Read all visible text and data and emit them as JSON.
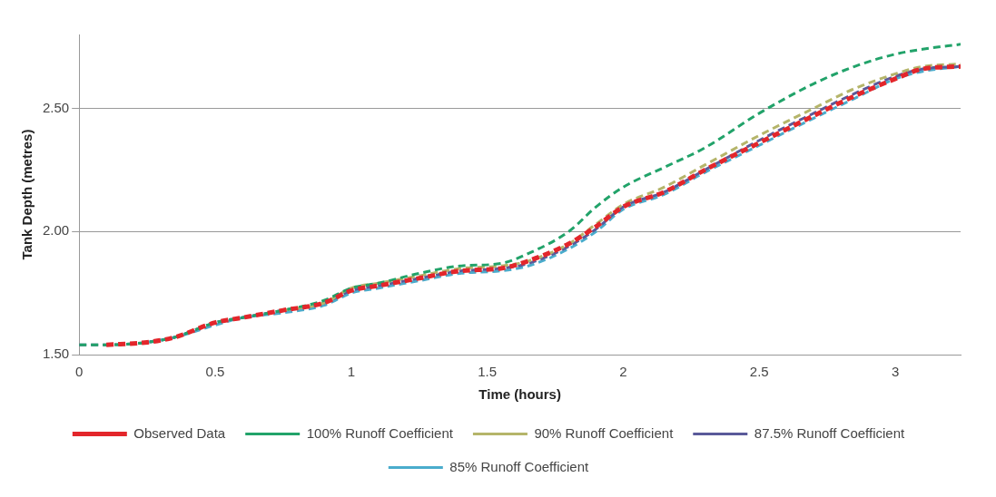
{
  "chart_data": {
    "type": "line",
    "xlabel": "Time (hours)",
    "ylabel": "Tank Depth (metres)",
    "x": [
      0,
      0.1,
      0.25,
      0.35,
      0.5,
      0.6,
      0.75,
      0.9,
      1.0,
      1.1,
      1.25,
      1.4,
      1.55,
      1.65,
      1.8,
      1.9,
      2.0,
      2.15,
      2.3,
      2.5,
      2.7,
      2.85,
      3.0,
      3.1,
      3.24
    ],
    "series": [
      {
        "name": "Observed Data",
        "color": "#e3262b",
        "line_style": "dashed",
        "values": [
          null,
          1.54,
          1.55,
          1.57,
          1.63,
          1.65,
          1.68,
          1.71,
          1.76,
          1.78,
          1.81,
          1.84,
          1.85,
          1.88,
          1.95,
          2.02,
          2.1,
          2.16,
          2.25,
          2.36,
          2.47,
          2.55,
          2.62,
          2.66,
          2.67
        ]
      },
      {
        "name": "100% Runoff Coefficient",
        "color": "#22a36a",
        "line_style": "dashed",
        "values": [
          1.54,
          1.54,
          1.55,
          1.57,
          1.63,
          1.65,
          1.68,
          1.72,
          1.77,
          1.79,
          1.83,
          1.86,
          1.87,
          1.91,
          2.0,
          2.1,
          2.18,
          2.26,
          2.34,
          2.48,
          2.6,
          2.67,
          2.72,
          2.74,
          2.76
        ]
      },
      {
        "name": "90% Runoff Coefficient",
        "color": "#b5b56a",
        "line_style": "dashed",
        "values": [
          null,
          null,
          null,
          null,
          null,
          null,
          1.68,
          1.71,
          1.77,
          1.79,
          1.82,
          1.85,
          1.86,
          1.88,
          1.95,
          2.03,
          2.11,
          2.18,
          2.27,
          2.39,
          2.5,
          2.58,
          2.64,
          2.67,
          2.68
        ]
      },
      {
        "name": "87.5% Runoff Coefficient",
        "color": "#5a5a9a",
        "line_style": "dashed",
        "values": [
          1.54,
          1.54,
          1.55,
          1.57,
          1.63,
          1.65,
          1.68,
          1.71,
          1.76,
          1.78,
          1.81,
          1.84,
          1.85,
          1.87,
          1.94,
          2.01,
          2.1,
          2.16,
          2.25,
          2.37,
          2.48,
          2.56,
          2.63,
          2.66,
          2.67
        ]
      },
      {
        "name": "85% Runoff Coefficient",
        "color": "#4aaccc",
        "line_style": "dashed",
        "values": [
          null,
          null,
          1.55,
          1.57,
          1.62,
          1.65,
          1.67,
          1.7,
          1.75,
          1.77,
          1.8,
          1.83,
          1.84,
          1.86,
          1.93,
          2.0,
          2.09,
          2.15,
          2.24,
          2.35,
          2.46,
          2.54,
          2.62,
          2.65,
          2.67
        ]
      }
    ],
    "xlim": [
      0,
      3.24
    ],
    "xticks": [
      0,
      0.5,
      1,
      1.5,
      2,
      2.5,
      3
    ],
    "ylim": [
      1.5,
      2.8
    ],
    "yticks": [
      {
        "value": 1.5,
        "label": "1.50"
      },
      {
        "value": 2,
        "label": "2.00"
      },
      {
        "value": 2.5,
        "label": "2.50"
      }
    ],
    "grid": "y",
    "legend": "bottom",
    "marker": "none"
  }
}
